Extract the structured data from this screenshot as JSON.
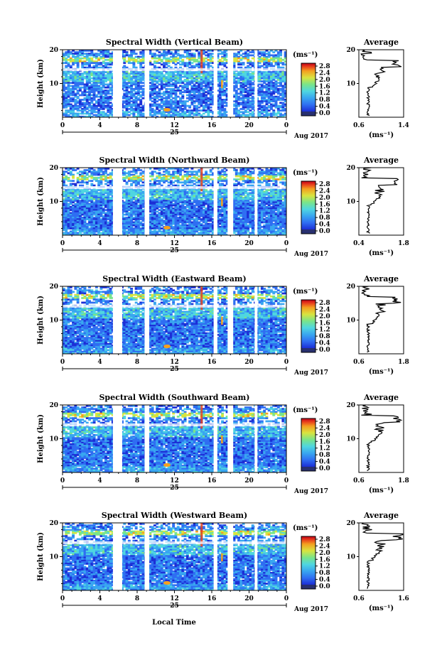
{
  "chart_data": [
    {
      "type": "heatmap",
      "title": "Spectral Width (Vertical Beam)",
      "ylabel": "Height (km)",
      "yticks": [
        "10",
        "20"
      ],
      "xticks": [
        "0",
        "4",
        "8",
        "12",
        "16",
        "20",
        "0"
      ],
      "date_label": "25",
      "month_label": "Aug 2017",
      "colorbar": {
        "unit": "(ms⁻¹)",
        "ticks": [
          "0.0",
          "0.4",
          "0.8",
          "1.2",
          "1.6",
          "2.0",
          "2.4",
          "2.8"
        ]
      },
      "average": {
        "title": "Average",
        "xlabel": "(ms⁻¹)",
        "xticks": [
          "0.6",
          "1.4"
        ],
        "yticks": [
          "10",
          "20"
        ],
        "xlim": [
          0.6,
          1.4
        ]
      }
    },
    {
      "type": "heatmap",
      "title": "Spectral Width (Northward Beam)",
      "ylabel": "Height (km)",
      "yticks": [
        "10",
        "20"
      ],
      "xticks": [
        "0",
        "4",
        "8",
        "12",
        "16",
        "20",
        "0"
      ],
      "date_label": "25",
      "month_label": "Aug 2017",
      "colorbar": {
        "unit": "(ms⁻¹)",
        "ticks": [
          "0.0",
          "0.4",
          "0.8",
          "1.2",
          "1.6",
          "2.0",
          "2.4",
          "2.8"
        ]
      },
      "average": {
        "title": "Average",
        "xlabel": "(ms⁻¹)",
        "xticks": [
          "0.4",
          "1.8"
        ],
        "yticks": [
          "10",
          "20"
        ],
        "xlim": [
          0.4,
          1.8
        ]
      }
    },
    {
      "type": "heatmap",
      "title": "Spectral Width (Eastward Beam)",
      "ylabel": "Height (km)",
      "yticks": [
        "10",
        "20"
      ],
      "xticks": [
        "0",
        "4",
        "8",
        "12",
        "16",
        "20",
        "0"
      ],
      "date_label": "25",
      "month_label": "Aug 2017",
      "colorbar": {
        "unit": "(ms⁻¹)",
        "ticks": [
          "0.0",
          "0.4",
          "0.8",
          "1.2",
          "1.6",
          "2.0",
          "2.4",
          "2.8"
        ]
      },
      "average": {
        "title": "Average",
        "xlabel": "(ms⁻¹)",
        "xticks": [
          "0.6",
          "1.8"
        ],
        "yticks": [
          "10",
          "20"
        ],
        "xlim": [
          0.6,
          1.8
        ]
      }
    },
    {
      "type": "heatmap",
      "title": "Spectral Width (Southward Beam)",
      "ylabel": "Height (km)",
      "yticks": [
        "10",
        "20"
      ],
      "xticks": [
        "0",
        "4",
        "8",
        "12",
        "16",
        "20",
        "0"
      ],
      "date_label": "25",
      "month_label": "Aug 2017",
      "colorbar": {
        "unit": "(ms⁻¹)",
        "ticks": [
          "0.0",
          "0.4",
          "0.8",
          "1.2",
          "1.6",
          "2.0",
          "2.4",
          "2.8"
        ]
      },
      "average": {
        "title": "Average",
        "xlabel": "(ms⁻¹)",
        "xticks": [
          "0.6",
          "1.8"
        ],
        "yticks": [
          "10",
          "20"
        ],
        "xlim": [
          0.6,
          1.8
        ]
      }
    },
    {
      "type": "heatmap",
      "title": "Spectral Width (Westward Beam)",
      "ylabel": "Height (km)",
      "yticks": [
        "10",
        "20"
      ],
      "xticks": [
        "0",
        "4",
        "8",
        "12",
        "16",
        "20",
        "0"
      ],
      "date_label": "25",
      "month_label": "Aug 2017",
      "colorbar": {
        "unit": "(ms⁻¹)",
        "ticks": [
          "0.0",
          "0.4",
          "0.8",
          "1.2",
          "1.6",
          "2.0",
          "2.4",
          "2.8"
        ]
      },
      "average": {
        "title": "Average",
        "xlabel": "(ms⁻¹)",
        "xticks": [
          "0.6",
          "1.6"
        ],
        "yticks": [
          "10",
          "20"
        ],
        "xlim": [
          0.6,
          1.6
        ]
      }
    }
  ],
  "xlabel": "Local Time",
  "colors": {
    "scale": [
      "#283070",
      "#1c2fd6",
      "#2f6ef2",
      "#39a6f0",
      "#4fd6e0",
      "#79e48a",
      "#d8e440",
      "#f4a020",
      "#e8401c",
      "#c00018"
    ],
    "background": "#ffffff"
  }
}
